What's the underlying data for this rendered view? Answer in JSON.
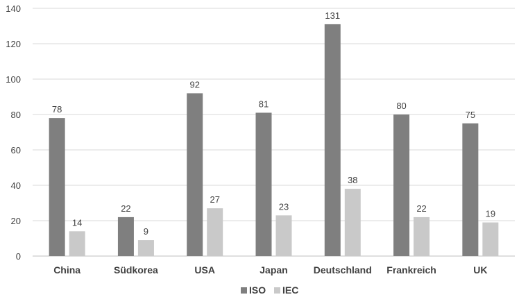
{
  "chart_data": {
    "type": "bar",
    "categories": [
      "China",
      "Südkorea",
      "USA",
      "Japan",
      "Deutschland",
      "Frankreich",
      "UK"
    ],
    "series": [
      {
        "name": "ISO",
        "values": [
          78,
          22,
          92,
          81,
          131,
          80,
          75
        ],
        "color": "#7f7f7f"
      },
      {
        "name": "IEC",
        "values": [
          14,
          9,
          27,
          23,
          38,
          22,
          19
        ],
        "color": "#c9c9c9"
      }
    ],
    "ylim": [
      0,
      140
    ],
    "yticks": [
      0,
      20,
      40,
      60,
      80,
      100,
      120,
      140
    ],
    "grid": true,
    "legend": "bottom"
  }
}
